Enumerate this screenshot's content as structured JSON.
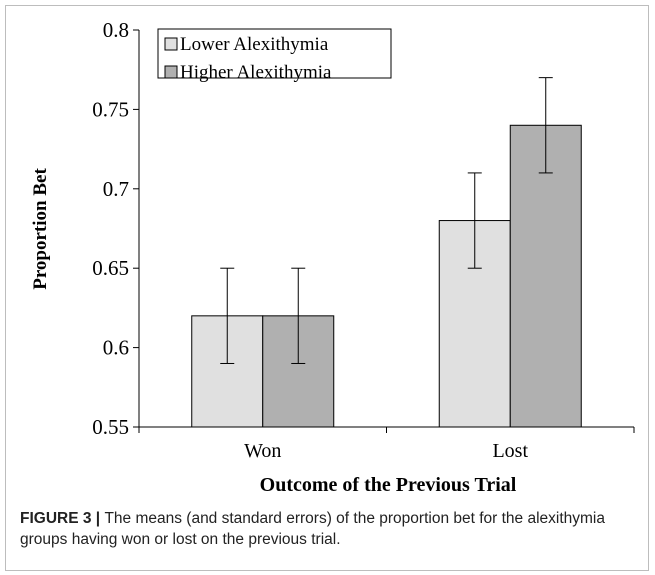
{
  "chart_data": {
    "type": "bar",
    "categories": [
      "Won",
      "Lost"
    ],
    "series": [
      {
        "name": "Lower Alexithymia",
        "values": [
          0.62,
          0.68
        ],
        "errors": [
          0.03,
          0.03
        ],
        "color": "#e0e0e0"
      },
      {
        "name": "Higher Alexithymia",
        "values": [
          0.62,
          0.74
        ],
        "errors": [
          0.03,
          0.03
        ],
        "color": "#b0b0b0"
      }
    ],
    "xlabel": "Outcome of the Previous Trial",
    "ylabel": "Proportion Bet",
    "ylim": [
      0.55,
      0.8
    ],
    "yticks": [
      "0.55",
      "0.6",
      "0.65",
      "0.7",
      "0.75",
      "0.8"
    ],
    "grid": false,
    "legend_position": "top-left"
  },
  "caption": {
    "label": "FIGURE 3 | ",
    "text": "The means (and standard errors) of the proportion bet for the alexithymia groups having won or lost on the previous trial."
  }
}
